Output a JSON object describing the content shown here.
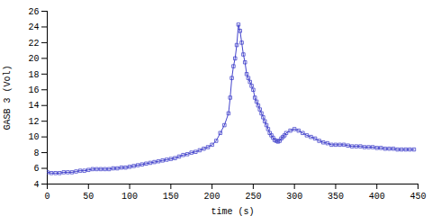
{
  "chart_data": {
    "type": "line",
    "xlabel": "time (s)",
    "ylabel": "GASB 3 (Vol)",
    "x": [
      0,
      5,
      10,
      15,
      20,
      25,
      30,
      35,
      40,
      45,
      50,
      55,
      60,
      65,
      70,
      75,
      80,
      85,
      90,
      95,
      100,
      105,
      110,
      115,
      120,
      125,
      130,
      135,
      140,
      145,
      150,
      155,
      160,
      165,
      170,
      175,
      180,
      185,
      190,
      195,
      200,
      205,
      210,
      215,
      220,
      222,
      224,
      226,
      228,
      230,
      232,
      234,
      236,
      238,
      240,
      242,
      244,
      246,
      248,
      250,
      252,
      254,
      256,
      258,
      260,
      262,
      264,
      266,
      268,
      270,
      272,
      274,
      276,
      278,
      280,
      282,
      284,
      286,
      288,
      290,
      295,
      300,
      305,
      310,
      315,
      320,
      325,
      330,
      335,
      340,
      345,
      350,
      355,
      360,
      365,
      370,
      375,
      380,
      385,
      390,
      395,
      400,
      405,
      410,
      415,
      420,
      425,
      430,
      435,
      440,
      445
    ],
    "values": [
      5.5,
      5.4,
      5.4,
      5.4,
      5.5,
      5.5,
      5.5,
      5.6,
      5.7,
      5.7,
      5.8,
      5.9,
      5.9,
      5.9,
      5.9,
      5.9,
      6.0,
      6.0,
      6.1,
      6.1,
      6.2,
      6.3,
      6.4,
      6.5,
      6.6,
      6.7,
      6.8,
      6.9,
      7.0,
      7.1,
      7.2,
      7.3,
      7.5,
      7.7,
      7.8,
      8.0,
      8.1,
      8.3,
      8.5,
      8.7,
      9.0,
      9.5,
      10.5,
      11.5,
      13.0,
      15.0,
      17.5,
      19.0,
      20.0,
      21.7,
      24.3,
      23.5,
      22.0,
      20.5,
      19.5,
      18.0,
      17.5,
      17.0,
      16.5,
      16.0,
      15.0,
      14.5,
      14.0,
      13.5,
      13.0,
      12.5,
      12.0,
      11.5,
      11.0,
      10.5,
      10.2,
      9.9,
      9.6,
      9.5,
      9.4,
      9.5,
      9.8,
      10.0,
      10.2,
      10.5,
      10.8,
      11.0,
      10.8,
      10.5,
      10.2,
      10.0,
      9.8,
      9.5,
      9.3,
      9.2,
      9.0,
      9.0,
      9.0,
      9.0,
      8.9,
      8.8,
      8.8,
      8.8,
      8.7,
      8.7,
      8.7,
      8.6,
      8.6,
      8.5,
      8.5,
      8.5,
      8.4,
      8.4,
      8.4,
      8.4,
      8.4
    ],
    "color": "#4444cc",
    "marker": "square",
    "xlim": [
      0,
      450
    ],
    "ylim": [
      4,
      26
    ],
    "xticks": [
      0,
      50,
      100,
      150,
      200,
      250,
      300,
      350,
      400,
      450
    ],
    "yticks": [
      4,
      6,
      8,
      10,
      12,
      14,
      16,
      18,
      20,
      22,
      24,
      26
    ],
    "grid": false
  }
}
